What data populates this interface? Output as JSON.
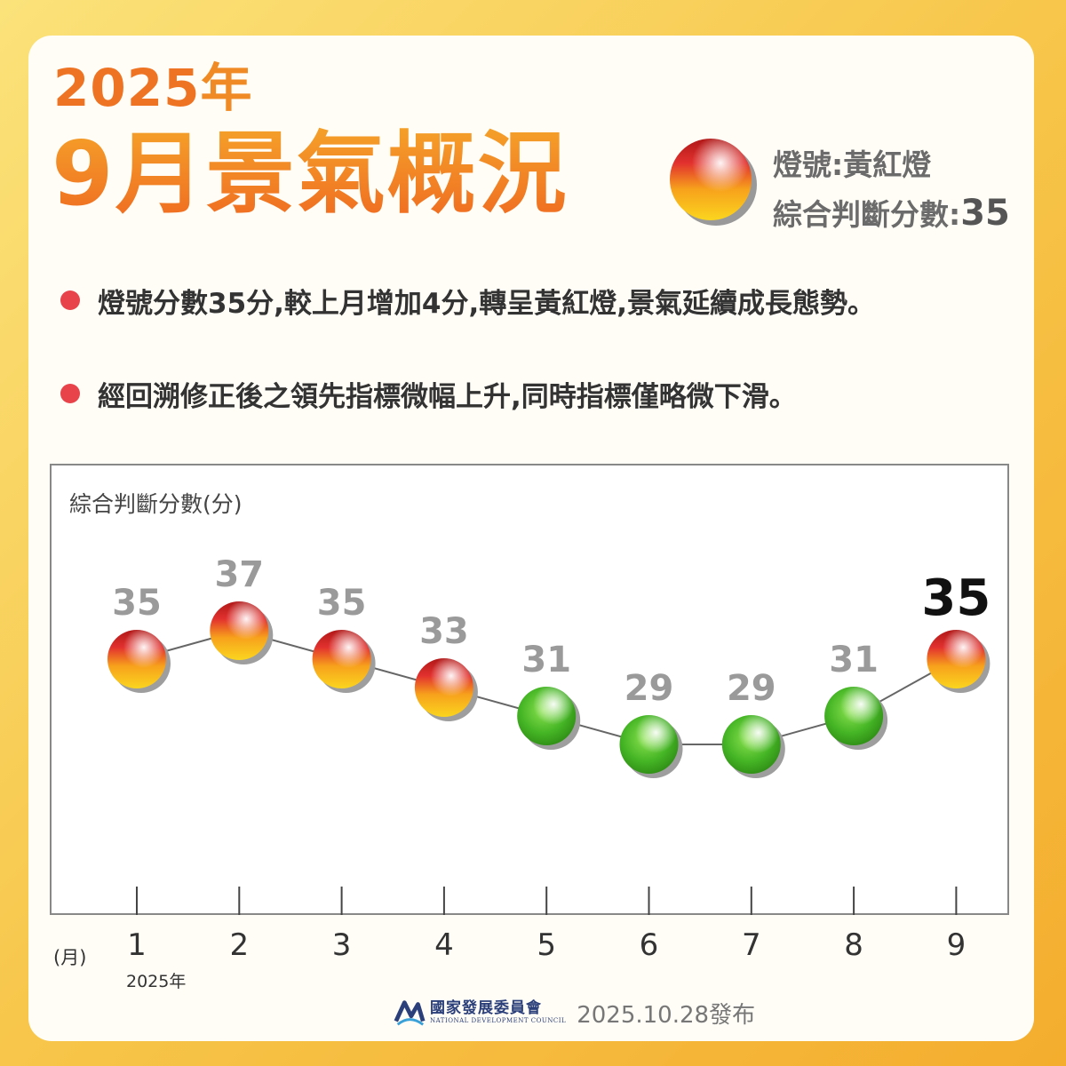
{
  "header": {
    "year": "2025",
    "year_char": "年",
    "title": "9月景氣概況",
    "signal_label": "燈號:黃紅燈",
    "score_label": "綜合判斷分數:",
    "score_value": "35"
  },
  "bullets": [
    "燈號分數35分,較上月增加4分,轉呈黃紅燈,景氣延續成長態勢。",
    "經回溯修正後之領先指標微幅上升,同時指標僅略微下滑。"
  ],
  "colors": {
    "yellow_red": "#e8343a",
    "yellow": "#f7c51a",
    "green": "#4cbb2c",
    "label_gray": "#9a9a9a",
    "label_highlight": "#111111",
    "accent_orange": "#ef6a21"
  },
  "chart_data": {
    "type": "line",
    "ylabel": "綜合判斷分數(分)",
    "xlabel": "(月)",
    "year_note": "2025年",
    "categories": [
      "1",
      "2",
      "3",
      "4",
      "5",
      "6",
      "7",
      "8",
      "9"
    ],
    "values": [
      35,
      37,
      35,
      33,
      31,
      29,
      29,
      31,
      35
    ],
    "signals": [
      "yellow-red",
      "yellow-red",
      "yellow-red",
      "yellow-red",
      "green",
      "green",
      "green",
      "green",
      "yellow-red"
    ],
    "highlight_index": 8,
    "grid": false
  },
  "footer": {
    "org_name": "國家發展委員會",
    "org_name_en": "NATIONAL DEVELOPMENT COUNCIL",
    "release": "2025.10.28發布"
  }
}
